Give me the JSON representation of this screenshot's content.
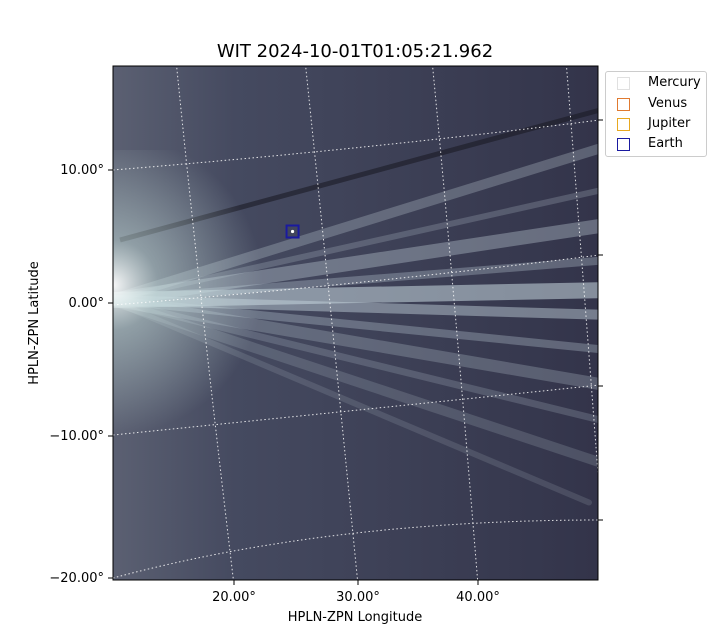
{
  "chart_data": {
    "type": "scatter",
    "title": "WIT 2024-10-01T01:05:21.962",
    "xlabel": "HPLN-ZPN Longitude",
    "ylabel": "HPLN-ZPN Latitude",
    "x_ticks": [
      "20.00°",
      "30.00°",
      "40.00°"
    ],
    "y_ticks": [
      "10.00°",
      "0.00°",
      "−10.00°",
      "−20.00°"
    ],
    "grid": true,
    "legend_position": "upper-right-outside",
    "series": [
      {
        "name": "Mercury",
        "color": "#e0e0e0",
        "points": []
      },
      {
        "name": "Venus",
        "color": "#e07a30",
        "points": []
      },
      {
        "name": "Jupiter",
        "color": "#e8a820",
        "points": []
      },
      {
        "name": "Earth",
        "color": "#1a1aa0",
        "points": [
          [
            24.8,
            5.3
          ]
        ]
      }
    ],
    "background": "white-light coronagraph image (grayscale)"
  }
}
